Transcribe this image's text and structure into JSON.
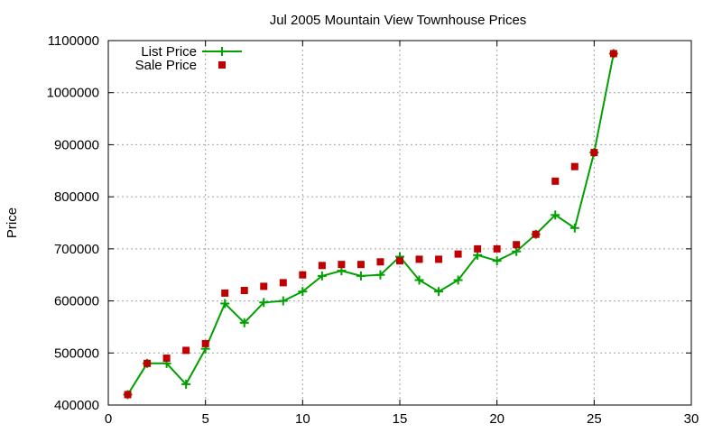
{
  "chart_data": {
    "type": "line",
    "title": "Jul 2005 Mountain View Townhouse Prices",
    "xlabel": "",
    "ylabel": "Price",
    "xlim": [
      0,
      30
    ],
    "ylim": [
      400000,
      1100000
    ],
    "xticks": [
      "0",
      "5",
      "10",
      "15",
      "20",
      "25",
      "30"
    ],
    "yticks": [
      "400000",
      "500000",
      "600000",
      "700000",
      "800000",
      "900000",
      "1000000",
      "1100000"
    ],
    "grid": true,
    "legend_position": "top-left",
    "series": [
      {
        "name": "List Price",
        "style": "line-with-plus-markers",
        "color": "#00a000",
        "x": [
          1,
          2,
          3,
          4,
          5,
          6,
          7,
          8,
          9,
          10,
          11,
          12,
          13,
          14,
          15,
          16,
          17,
          18,
          19,
          20,
          21,
          22,
          23,
          24,
          25,
          26
        ],
        "y": [
          420000,
          480000,
          480000,
          440000,
          508000,
          595000,
          558000,
          597000,
          600000,
          618000,
          648000,
          658000,
          648000,
          650000,
          685000,
          640000,
          618000,
          640000,
          688000,
          677000,
          695000,
          728000,
          765000,
          740000,
          885000,
          1075000
        ]
      },
      {
        "name": "Sale Price",
        "style": "square-points",
        "color": "#c00000",
        "x": [
          1,
          2,
          3,
          4,
          5,
          6,
          7,
          8,
          9,
          10,
          11,
          12,
          13,
          14,
          15,
          16,
          17,
          18,
          19,
          20,
          21,
          22,
          23,
          24,
          25,
          26
        ],
        "y": [
          420000,
          480000,
          490000,
          505000,
          518000,
          615000,
          620000,
          628000,
          635000,
          650000,
          668000,
          670000,
          670000,
          675000,
          677000,
          680000,
          680000,
          690000,
          700000,
          700000,
          708000,
          728000,
          830000,
          858000,
          885000,
          1075000
        ]
      }
    ]
  }
}
